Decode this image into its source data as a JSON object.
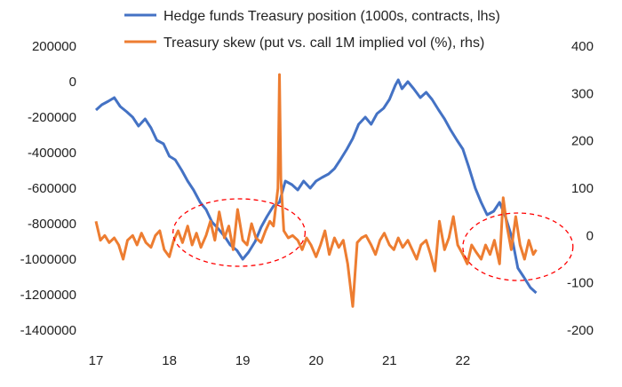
{
  "chart_data": {
    "type": "line",
    "title": "",
    "x_tick_labels": [
      "17",
      "18",
      "19",
      "20",
      "21",
      "22"
    ],
    "x_range": [
      17,
      23.2
    ],
    "y_left": {
      "range": [
        -1400000,
        200000
      ],
      "tick_labels": [
        "200000",
        "0",
        "-200000",
        "-400000",
        "-600000",
        "-800000",
        "-1000000",
        "-1200000",
        "-1400000"
      ]
    },
    "y_right": {
      "range": [
        -200,
        400
      ],
      "tick_labels": [
        "400",
        "300",
        "200",
        "100",
        "0",
        "-100",
        "-200"
      ]
    },
    "legend_position": "top",
    "series": [
      {
        "name": "Hedge funds Treasury position (1000s, contracts, lhs)",
        "axis": "left",
        "color": "#4472c4",
        "points": [
          [
            17.0,
            -160000
          ],
          [
            17.08,
            -130000
          ],
          [
            17.17,
            -110000
          ],
          [
            17.25,
            -90000
          ],
          [
            17.33,
            -140000
          ],
          [
            17.42,
            -170000
          ],
          [
            17.5,
            -200000
          ],
          [
            17.58,
            -250000
          ],
          [
            17.67,
            -210000
          ],
          [
            17.75,
            -260000
          ],
          [
            17.83,
            -330000
          ],
          [
            17.92,
            -350000
          ],
          [
            18.0,
            -420000
          ],
          [
            18.08,
            -440000
          ],
          [
            18.17,
            -500000
          ],
          [
            18.25,
            -560000
          ],
          [
            18.33,
            -610000
          ],
          [
            18.42,
            -680000
          ],
          [
            18.5,
            -720000
          ],
          [
            18.58,
            -790000
          ],
          [
            18.67,
            -830000
          ],
          [
            18.75,
            -870000
          ],
          [
            18.83,
            -920000
          ],
          [
            18.92,
            -950000
          ],
          [
            19.0,
            -1000000
          ],
          [
            19.08,
            -960000
          ],
          [
            19.17,
            -900000
          ],
          [
            19.25,
            -820000
          ],
          [
            19.33,
            -760000
          ],
          [
            19.42,
            -700000
          ],
          [
            19.5,
            -680000
          ],
          [
            19.58,
            -560000
          ],
          [
            19.67,
            -580000
          ],
          [
            19.75,
            -610000
          ],
          [
            19.83,
            -560000
          ],
          [
            19.92,
            -600000
          ],
          [
            20.0,
            -560000
          ],
          [
            20.08,
            -540000
          ],
          [
            20.17,
            -520000
          ],
          [
            20.25,
            -490000
          ],
          [
            20.33,
            -440000
          ],
          [
            20.42,
            -380000
          ],
          [
            20.5,
            -320000
          ],
          [
            20.58,
            -240000
          ],
          [
            20.67,
            -200000
          ],
          [
            20.75,
            -240000
          ],
          [
            20.83,
            -180000
          ],
          [
            20.92,
            -150000
          ],
          [
            21.0,
            -100000
          ],
          [
            21.08,
            -20000
          ],
          [
            21.12,
            10000
          ],
          [
            21.17,
            -40000
          ],
          [
            21.25,
            0
          ],
          [
            21.33,
            -40000
          ],
          [
            21.42,
            -90000
          ],
          [
            21.5,
            -60000
          ],
          [
            21.58,
            -100000
          ],
          [
            21.67,
            -160000
          ],
          [
            21.75,
            -210000
          ],
          [
            21.83,
            -270000
          ],
          [
            21.92,
            -330000
          ],
          [
            22.0,
            -380000
          ],
          [
            22.08,
            -480000
          ],
          [
            22.17,
            -600000
          ],
          [
            22.25,
            -680000
          ],
          [
            22.33,
            -750000
          ],
          [
            22.42,
            -730000
          ],
          [
            22.5,
            -680000
          ],
          [
            22.58,
            -760000
          ],
          [
            22.67,
            -880000
          ],
          [
            22.75,
            -1050000
          ],
          [
            22.83,
            -1100000
          ],
          [
            22.92,
            -1160000
          ],
          [
            23.0,
            -1190000
          ]
        ]
      },
      {
        "name": "Treasury skew (put vs. call 1M implied vol (%), rhs)",
        "axis": "right",
        "color": "#ed7d31",
        "points": [
          [
            17.0,
            30
          ],
          [
            17.06,
            -10
          ],
          [
            17.12,
            0
          ],
          [
            17.18,
            -15
          ],
          [
            17.25,
            -5
          ],
          [
            17.31,
            -20
          ],
          [
            17.37,
            -50
          ],
          [
            17.43,
            -10
          ],
          [
            17.5,
            0
          ],
          [
            17.56,
            -20
          ],
          [
            17.62,
            5
          ],
          [
            17.68,
            -15
          ],
          [
            17.75,
            -25
          ],
          [
            17.81,
            0
          ],
          [
            17.87,
            10
          ],
          [
            17.93,
            -30
          ],
          [
            18.0,
            -45
          ],
          [
            18.06,
            -10
          ],
          [
            18.12,
            10
          ],
          [
            18.18,
            -15
          ],
          [
            18.25,
            20
          ],
          [
            18.31,
            -20
          ],
          [
            18.37,
            5
          ],
          [
            18.43,
            -25
          ],
          [
            18.5,
            0
          ],
          [
            18.56,
            30
          ],
          [
            18.62,
            -10
          ],
          [
            18.68,
            50
          ],
          [
            18.75,
            -5
          ],
          [
            18.81,
            20
          ],
          [
            18.87,
            -30
          ],
          [
            18.93,
            55
          ],
          [
            19.0,
            -10
          ],
          [
            19.06,
            -20
          ],
          [
            19.12,
            25
          ],
          [
            19.18,
            -5
          ],
          [
            19.25,
            -15
          ],
          [
            19.31,
            10
          ],
          [
            19.37,
            30
          ],
          [
            19.42,
            20
          ],
          [
            19.48,
            100
          ],
          [
            19.5,
            340
          ],
          [
            19.52,
            120
          ],
          [
            19.56,
            10
          ],
          [
            19.62,
            -5
          ],
          [
            19.68,
            0
          ],
          [
            19.75,
            -10
          ],
          [
            19.81,
            -30
          ],
          [
            19.87,
            -5
          ],
          [
            19.93,
            -20
          ],
          [
            20.0,
            -45
          ],
          [
            20.06,
            -20
          ],
          [
            20.12,
            10
          ],
          [
            20.18,
            -40
          ],
          [
            20.25,
            -5
          ],
          [
            20.31,
            -25
          ],
          [
            20.37,
            -10
          ],
          [
            20.43,
            -60
          ],
          [
            20.5,
            -150
          ],
          [
            20.56,
            -15
          ],
          [
            20.62,
            -5
          ],
          [
            20.68,
            0
          ],
          [
            20.75,
            -20
          ],
          [
            20.81,
            -40
          ],
          [
            20.87,
            -10
          ],
          [
            20.93,
            5
          ],
          [
            21.0,
            -20
          ],
          [
            21.06,
            -30
          ],
          [
            21.12,
            -5
          ],
          [
            21.18,
            -25
          ],
          [
            21.25,
            -10
          ],
          [
            21.31,
            -30
          ],
          [
            21.37,
            -50
          ],
          [
            21.43,
            -20
          ],
          [
            21.5,
            -10
          ],
          [
            21.56,
            -40
          ],
          [
            21.62,
            -75
          ],
          [
            21.68,
            30
          ],
          [
            21.75,
            -30
          ],
          [
            21.81,
            -5
          ],
          [
            21.87,
            40
          ],
          [
            21.93,
            -20
          ],
          [
            22.0,
            -40
          ],
          [
            22.06,
            -60
          ],
          [
            22.12,
            -20
          ],
          [
            22.18,
            -35
          ],
          [
            22.25,
            -50
          ],
          [
            22.31,
            -20
          ],
          [
            22.37,
            -40
          ],
          [
            22.43,
            -10
          ],
          [
            22.5,
            -60
          ],
          [
            22.55,
            80
          ],
          [
            22.6,
            20
          ],
          [
            22.66,
            -30
          ],
          [
            22.72,
            40
          ],
          [
            22.78,
            -20
          ],
          [
            22.84,
            -50
          ],
          [
            22.9,
            -10
          ],
          [
            22.96,
            -40
          ],
          [
            23.0,
            -30
          ]
        ]
      }
    ],
    "annotations": [
      {
        "shape": "dashed-ellipse",
        "color": "#ff0000",
        "cx": 18.95,
        "cy": -850000,
        "rx": 0.9,
        "ry": 190000
      },
      {
        "shape": "dashed-ellipse",
        "color": "#ff0000",
        "cx": 22.75,
        "cy": -930000,
        "rx": 0.75,
        "ry": 190000
      }
    ]
  }
}
